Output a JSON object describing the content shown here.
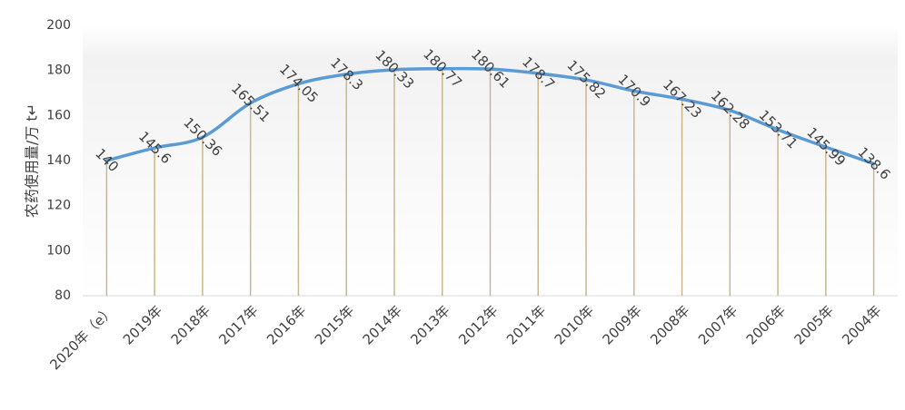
{
  "chart_data": {
    "type": "line",
    "y_label": "农药使用量/万 t↵",
    "categories": [
      "2020年（e）",
      "2019年",
      "2018年",
      "2017年",
      "2016年",
      "2015年",
      "2014年",
      "2013年",
      "2012年",
      "2011年",
      "2010年",
      "2009年",
      "2008年",
      "2007年",
      "2006年",
      "2005年",
      "2004年"
    ],
    "series": [
      {
        "name": "农药使用量",
        "color": "#5b9bd5",
        "values": [
          140,
          145.6,
          150.36,
          165.51,
          174.05,
          178.3,
          180.33,
          180.77,
          180.61,
          178.7,
          175.82,
          170.9,
          167.23,
          162.28,
          153.71,
          145.99,
          138.6
        ]
      }
    ],
    "drop_line_color": "#c9b88d",
    "ylim": [
      80,
      200
    ],
    "yticks": [
      80,
      100,
      120,
      140,
      160,
      180,
      200
    ]
  }
}
